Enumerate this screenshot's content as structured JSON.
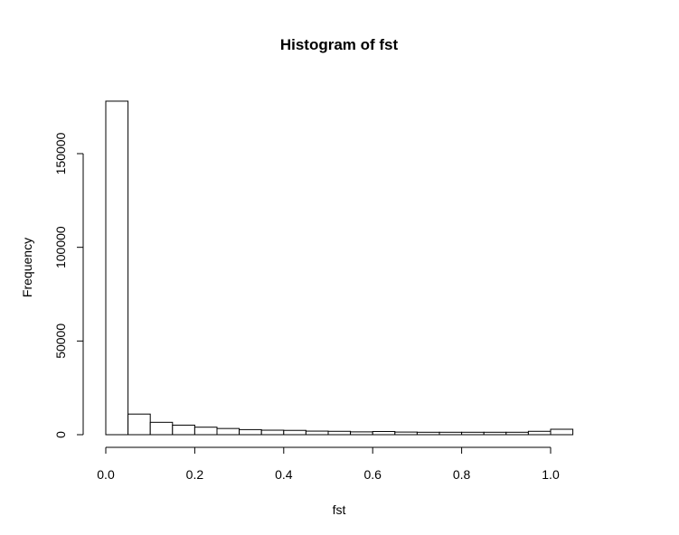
{
  "chart_data": {
    "type": "bar",
    "title": "Histogram of fst",
    "xlabel": "fst",
    "ylabel": "Frequency",
    "bin_width": 0.05,
    "bins_start": [
      0.0,
      0.05,
      0.1,
      0.15,
      0.2,
      0.25,
      0.3,
      0.35,
      0.4,
      0.45,
      0.5,
      0.55,
      0.6,
      0.65,
      0.7,
      0.75,
      0.8,
      0.85,
      0.9,
      0.95,
      1.0
    ],
    "values": [
      178000,
      11000,
      6600,
      5100,
      4000,
      3300,
      2700,
      2400,
      2300,
      1900,
      1800,
      1500,
      1700,
      1400,
      1300,
      1300,
      1300,
      1300,
      1300,
      1800,
      2900
    ],
    "xlim": [
      0.0,
      1.05
    ],
    "ylim": [
      0,
      180000
    ],
    "x_ticks": [
      "0.0",
      "0.2",
      "0.4",
      "0.6",
      "0.8",
      "1.0"
    ],
    "y_ticks": [
      "0",
      "50000",
      "100000",
      "150000"
    ]
  }
}
